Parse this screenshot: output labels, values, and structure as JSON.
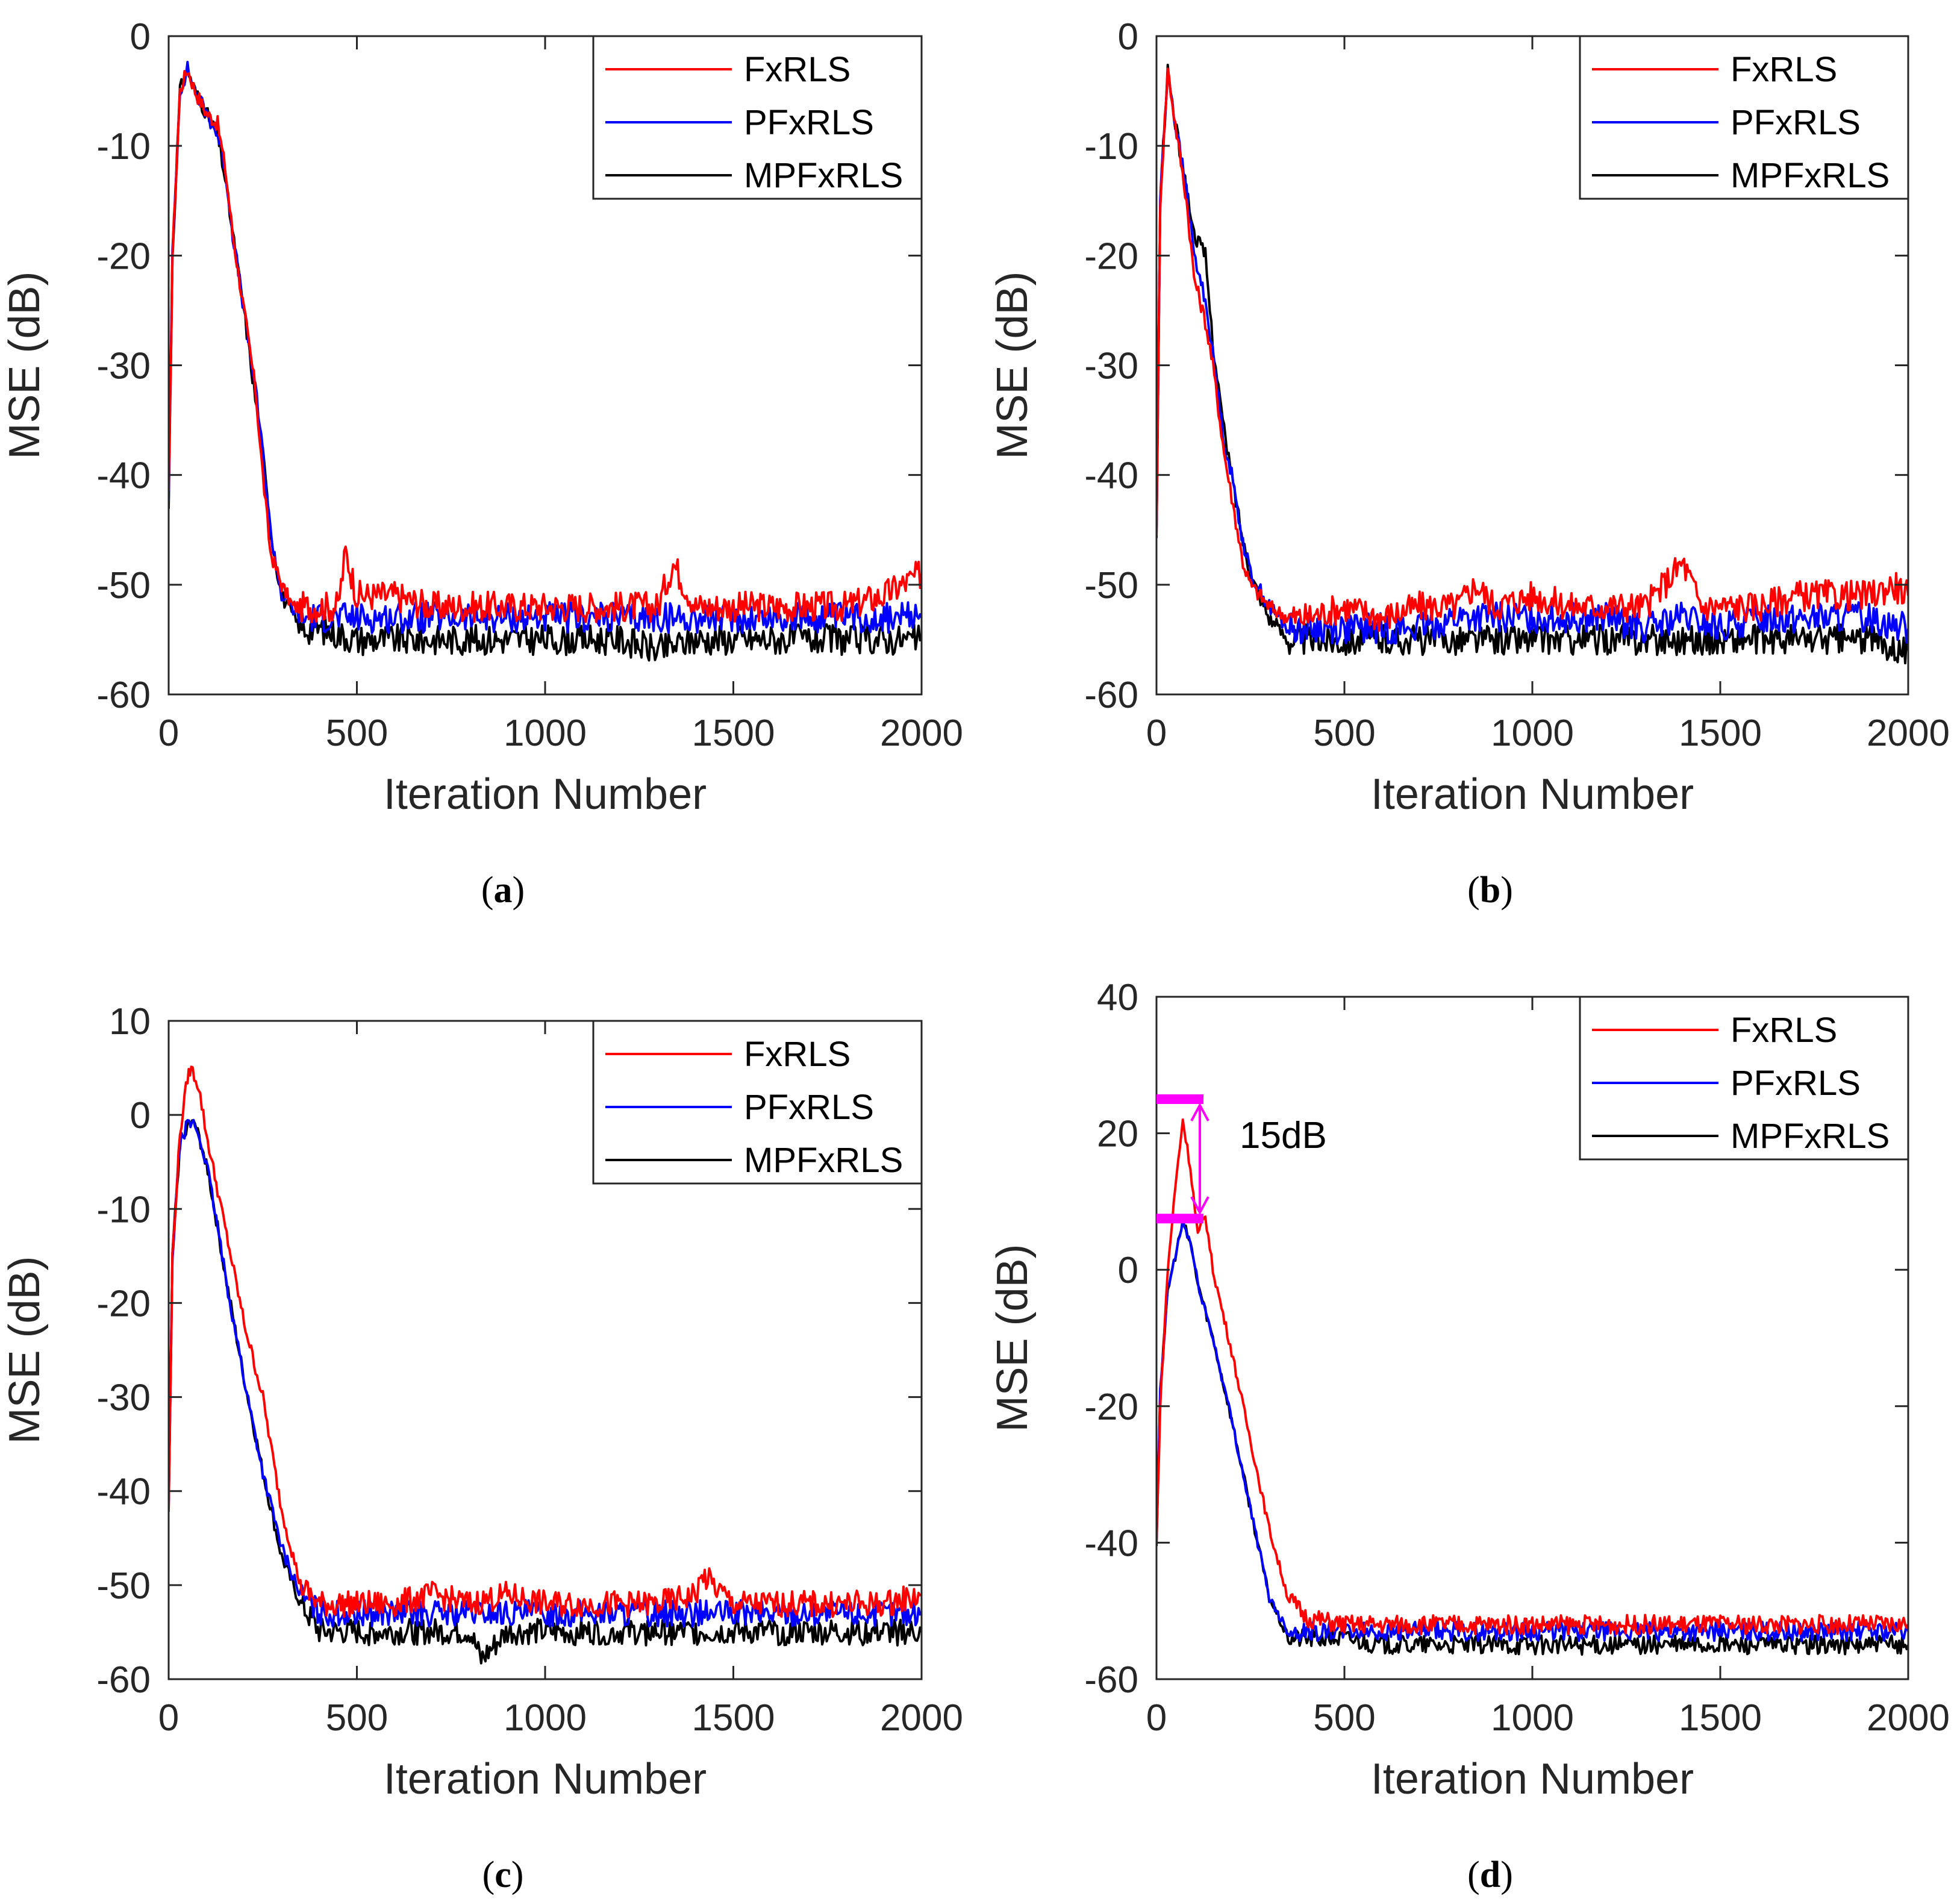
{
  "colors": {
    "FxRLS": "#ff0000",
    "PFxRLS": "#0000ff",
    "MPFxRLS": "#000000",
    "annotation": "#ff00ff"
  },
  "chart_data": [
    {
      "panel": "(a)",
      "panel_letter": "a",
      "type": "line",
      "xlabel": "Iteration Number",
      "ylabel": "MSE (dB)",
      "xlim": [
        0,
        2000
      ],
      "ylim": [
        -60,
        0
      ],
      "xticks": [
        0,
        500,
        1000,
        1500,
        2000
      ],
      "yticks": [
        -60,
        -50,
        -40,
        -30,
        -20,
        -10,
        0
      ],
      "legend": "top-right",
      "grid": false,
      "series": [
        {
          "name": "FxRLS",
          "color": "#ff0000",
          "x": [
            0,
            10,
            30,
            50,
            70,
            100,
            130,
            150,
            170,
            200,
            230,
            250,
            270,
            300,
            330,
            380,
            450,
            470,
            500,
            600,
            700,
            800,
            900,
            1000,
            1100,
            1200,
            1300,
            1340,
            1400,
            1500,
            1600,
            1700,
            1800,
            1900,
            1950,
            2000
          ],
          "y": [
            -42,
            -20,
            -5,
            -3,
            -5,
            -7,
            -8,
            -12,
            -18,
            -25,
            -32,
            -40,
            -47,
            -50,
            -52,
            -52,
            -52,
            -47,
            -51,
            -51,
            -52,
            -52,
            -52,
            -52,
            -52,
            -52,
            -52,
            -48,
            -52,
            -52,
            -52,
            -52,
            -52,
            -51,
            -50,
            -49
          ]
        },
        {
          "name": "PFxRLS",
          "color": "#0000ff",
          "x": [
            0,
            10,
            30,
            50,
            70,
            100,
            130,
            150,
            170,
            200,
            230,
            250,
            270,
            300,
            350,
            400,
            500,
            600,
            700,
            800,
            900,
            1000,
            1100,
            1200,
            1300,
            1400,
            1500,
            1600,
            1700,
            1800,
            1900,
            2000
          ],
          "y": [
            -42,
            -20,
            -5,
            -3,
            -5,
            -7,
            -9,
            -12,
            -18,
            -25,
            -32,
            -38,
            -45,
            -51,
            -53,
            -53,
            -53,
            -53,
            -53,
            -53,
            -53,
            -53,
            -53,
            -53,
            -53,
            -53,
            -53,
            -53,
            -53,
            -53,
            -53,
            -53
          ]
        },
        {
          "name": "MPFxRLS",
          "color": "#000000",
          "x": [
            0,
            10,
            30,
            50,
            70,
            100,
            130,
            150,
            170,
            200,
            230,
            250,
            270,
            300,
            350,
            400,
            500,
            600,
            700,
            800,
            900,
            1000,
            1100,
            1200,
            1300,
            1400,
            1500,
            1600,
            1700,
            1800,
            1900,
            2000
          ],
          "y": [
            -43,
            -20,
            -5,
            -3,
            -5,
            -7,
            -9,
            -13,
            -18,
            -25,
            -33,
            -38,
            -45,
            -51,
            -54,
            -54,
            -55,
            -55,
            -55,
            -55,
            -55,
            -55,
            -55,
            -55,
            -56,
            -55,
            -55,
            -55,
            -55,
            -55,
            -55,
            -55
          ]
        }
      ]
    },
    {
      "panel": "(b)",
      "panel_letter": "b",
      "type": "line",
      "xlabel": "Iteration Number",
      "ylabel": "MSE (dB)",
      "xlim": [
        0,
        2000
      ],
      "ylim": [
        -60,
        0
      ],
      "xticks": [
        0,
        500,
        1000,
        1500,
        2000
      ],
      "yticks": [
        -60,
        -50,
        -40,
        -30,
        -20,
        -10,
        0
      ],
      "legend": "top-right",
      "grid": false,
      "series": [
        {
          "name": "FxRLS",
          "color": "#ff0000",
          "x": [
            0,
            10,
            30,
            50,
            80,
            100,
            130,
            150,
            180,
            200,
            230,
            250,
            300,
            350,
            400,
            500,
            600,
            700,
            800,
            850,
            900,
            1000,
            1100,
            1200,
            1300,
            1400,
            1450,
            1500,
            1600,
            1700,
            1800,
            1900,
            1960,
            2000
          ],
          "y": [
            -45,
            -15,
            -3,
            -8,
            -15,
            -22,
            -26,
            -30,
            -38,
            -42,
            -48,
            -50,
            -52,
            -53,
            -53,
            -52,
            -53,
            -52,
            -52,
            -50,
            -52,
            -51,
            -52,
            -52,
            -52,
            -48,
            -52,
            -52,
            -52,
            -51,
            -51,
            -51,
            -50,
            -51
          ]
        },
        {
          "name": "PFxRLS",
          "color": "#0000ff",
          "x": [
            0,
            10,
            30,
            50,
            80,
            100,
            130,
            150,
            180,
            200,
            230,
            250,
            300,
            350,
            400,
            500,
            600,
            700,
            800,
            900,
            1000,
            1100,
            1200,
            1300,
            1400,
            1500,
            1600,
            1700,
            1800,
            1900,
            2000
          ],
          "y": [
            -45,
            -15,
            -3,
            -8,
            -14,
            -20,
            -24,
            -29,
            -37,
            -40,
            -46,
            -49,
            -52,
            -54,
            -54,
            -54,
            -54,
            -54,
            -53,
            -53,
            -53,
            -53,
            -53,
            -54,
            -53,
            -54,
            -53,
            -53,
            -53,
            -53,
            -54
          ]
        },
        {
          "name": "MPFxRLS",
          "color": "#000000",
          "x": [
            0,
            10,
            30,
            50,
            80,
            100,
            130,
            150,
            180,
            200,
            230,
            250,
            300,
            350,
            400,
            500,
            600,
            700,
            800,
            900,
            1000,
            1100,
            1200,
            1300,
            1400,
            1500,
            1600,
            1700,
            1800,
            1900,
            2000
          ],
          "y": [
            -46,
            -15,
            -3,
            -8,
            -14,
            -18,
            -20,
            -28,
            -36,
            -40,
            -46,
            -49,
            -53,
            -55,
            -55,
            -55,
            -55,
            -55,
            -55,
            -55,
            -55,
            -55,
            -55,
            -55,
            -55,
            -55,
            -55,
            -55,
            -55,
            -55,
            -56
          ]
        }
      ]
    },
    {
      "panel": "(c)",
      "panel_letter": "c",
      "type": "line",
      "xlabel": "Iteration Number",
      "ylabel": "MSE (dB)",
      "xlim": [
        0,
        2000
      ],
      "ylim": [
        -60,
        10
      ],
      "xticks": [
        0,
        500,
        1000,
        1500,
        2000
      ],
      "yticks": [
        -60,
        -50,
        -40,
        -30,
        -20,
        -10,
        0,
        10
      ],
      "legend": "top-right",
      "grid": false,
      "series": [
        {
          "name": "FxRLS",
          "color": "#ff0000",
          "x": [
            0,
            10,
            30,
            50,
            60,
            80,
            100,
            130,
            150,
            200,
            250,
            300,
            350,
            400,
            450,
            500,
            600,
            700,
            800,
            900,
            1000,
            1100,
            1200,
            1300,
            1400,
            1420,
            1500,
            1600,
            1700,
            1800,
            1900,
            2000
          ],
          "y": [
            -42,
            -15,
            -2,
            4,
            5,
            3,
            -2,
            -8,
            -12,
            -22,
            -30,
            -42,
            -50,
            -52,
            -52,
            -52,
            -52,
            -51,
            -52,
            -51,
            -52,
            -52,
            -52,
            -52,
            -51,
            -49,
            -52,
            -52,
            -52,
            -52,
            -52,
            -51
          ]
        },
        {
          "name": "PFxRLS",
          "color": "#0000ff",
          "x": [
            0,
            10,
            30,
            50,
            70,
            100,
            130,
            150,
            200,
            250,
            300,
            350,
            400,
            500,
            600,
            700,
            800,
            900,
            1000,
            1100,
            1200,
            1300,
            1400,
            1500,
            1600,
            1700,
            1800,
            1900,
            2000
          ],
          "y": [
            -42,
            -15,
            -3,
            -1,
            -1,
            -5,
            -12,
            -17,
            -28,
            -38,
            -46,
            -51,
            -53,
            -53,
            -53,
            -53,
            -53,
            -53,
            -53,
            -53,
            -53,
            -53,
            -53,
            -53,
            -53,
            -53,
            -53,
            -53,
            -53
          ]
        },
        {
          "name": "MPFxRLS",
          "color": "#000000",
          "x": [
            0,
            10,
            30,
            50,
            70,
            100,
            130,
            150,
            200,
            250,
            300,
            350,
            400,
            500,
            600,
            700,
            800,
            830,
            900,
            1000,
            1100,
            1200,
            1300,
            1400,
            1500,
            1600,
            1700,
            1800,
            1900,
            2000
          ],
          "y": [
            -42,
            -15,
            -3,
            -1,
            -1,
            -5,
            -12,
            -17,
            -28,
            -38,
            -47,
            -52,
            -55,
            -55,
            -55,
            -55,
            -55,
            -58,
            -55,
            -55,
            -55,
            -55,
            -55,
            -55,
            -55,
            -55,
            -55,
            -55,
            -55,
            -55
          ]
        }
      ]
    },
    {
      "panel": "(d)",
      "panel_letter": "d",
      "type": "line",
      "xlabel": "Iteration Number",
      "ylabel": "MSE (dB)",
      "xlim": [
        0,
        2000
      ],
      "ylim": [
        -60,
        40
      ],
      "xticks": [
        0,
        500,
        1000,
        1500,
        2000
      ],
      "yticks": [
        -60,
        -40,
        -20,
        0,
        20,
        40
      ],
      "legend": "top-right",
      "grid": false,
      "annotation": {
        "text": "15dB",
        "upper": 25,
        "lower": 7.5,
        "x": [
          0,
          125
        ]
      },
      "series": [
        {
          "name": "FxRLS",
          "color": "#ff0000",
          "x": [
            0,
            10,
            30,
            50,
            70,
            90,
            110,
            130,
            150,
            200,
            250,
            300,
            350,
            400,
            500,
            600,
            700,
            800,
            900,
            1000,
            1100,
            1200,
            1300,
            1400,
            1500,
            1600,
            1700,
            1800,
            1900,
            2000
          ],
          "y": [
            -40,
            -20,
            0,
            12,
            22,
            15,
            5,
            8,
            0,
            -12,
            -25,
            -38,
            -48,
            -51,
            -52,
            -52,
            -52,
            -52,
            -52,
            -52,
            -52,
            -52,
            -52,
            -52,
            -52,
            -52,
            -52,
            -52,
            -52,
            -52
          ]
        },
        {
          "name": "PFxRLS",
          "color": "#0000ff",
          "x": [
            0,
            10,
            30,
            50,
            70,
            90,
            110,
            150,
            200,
            250,
            300,
            350,
            400,
            500,
            600,
            700,
            800,
            900,
            1000,
            1100,
            1200,
            1300,
            1400,
            1500,
            1600,
            1700,
            1800,
            1900,
            2000
          ],
          "y": [
            -40,
            -18,
            -3,
            2,
            7,
            4,
            -2,
            -10,
            -22,
            -35,
            -48,
            -53,
            -53,
            -53,
            -53,
            -53,
            -53,
            -53,
            -53,
            -53,
            -53,
            -53,
            -53,
            -53,
            -53,
            -53,
            -53,
            -53,
            -53
          ]
        },
        {
          "name": "MPFxRLS",
          "color": "#000000",
          "x": [
            0,
            10,
            30,
            50,
            70,
            90,
            110,
            150,
            200,
            250,
            300,
            350,
            400,
            500,
            600,
            700,
            800,
            900,
            1000,
            1100,
            1200,
            1300,
            1400,
            1500,
            1600,
            1700,
            1800,
            1900,
            2000
          ],
          "y": [
            -40,
            -18,
            -3,
            2,
            7,
            4,
            -2,
            -10,
            -22,
            -35,
            -48,
            -54,
            -54,
            -54,
            -55,
            -55,
            -55,
            -55,
            -55,
            -55,
            -55,
            -55,
            -55,
            -55,
            -55,
            -55,
            -55,
            -55,
            -55
          ]
        }
      ]
    }
  ]
}
